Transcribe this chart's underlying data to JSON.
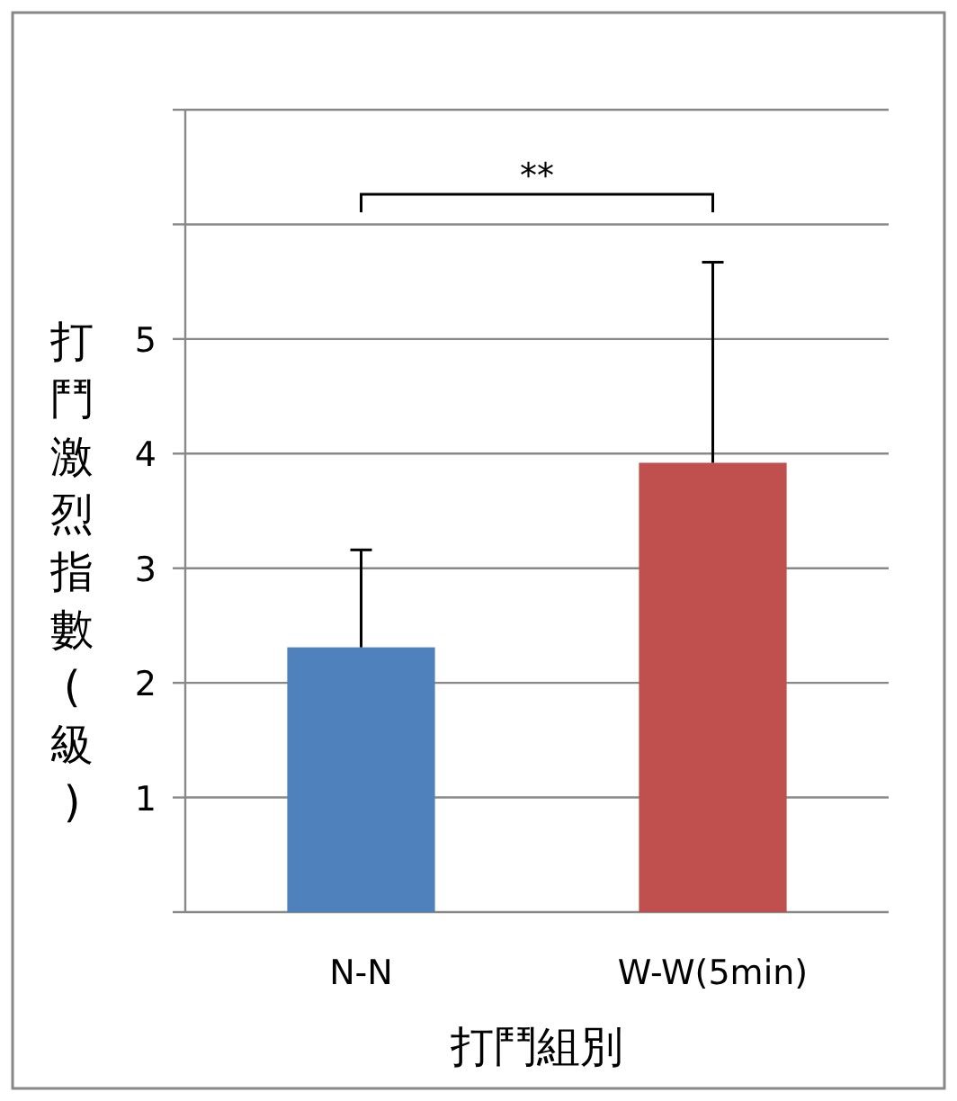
{
  "chart_data": {
    "type": "bar",
    "xlabel": "打鬥組別",
    "ylabel": "打鬥激烈指數(級)",
    "categories": [
      "N-N",
      "W-W(5min)"
    ],
    "values": [
      2.31,
      3.92
    ],
    "colors": [
      "#4f81bd",
      "#c0504d"
    ],
    "errors": [
      [
        2.31,
        3.16
      ],
      [
        3.92,
        5.67
      ]
    ],
    "ylim": [
      0,
      7
    ],
    "yticks": [
      {
        "value": 0,
        "label": null
      },
      1,
      2,
      3,
      4,
      5,
      {
        "value": 6,
        "label": null
      },
      {
        "value": 7,
        "label": null
      }
    ],
    "grid": "y",
    "annotations": [
      "**"
    ]
  }
}
